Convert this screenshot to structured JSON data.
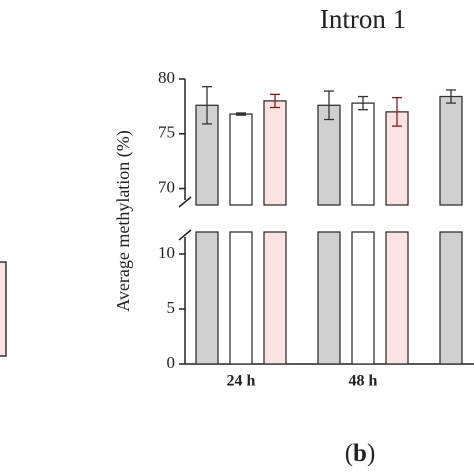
{
  "chart_data": {
    "type": "bar",
    "title": "Intron 1",
    "ylabel": "Average methylation (%)",
    "panel_label": {
      "open": "(",
      "letter": "b",
      "close": ")"
    },
    "categories": [
      "24 h",
      "48 h",
      null
    ],
    "series": [
      {
        "color": "#d0d0d0",
        "error_color": "#333333",
        "values": [
          77.6,
          77.6,
          78.4
        ],
        "errors": [
          1.7,
          1.3,
          0.6
        ]
      },
      {
        "color": "#ffffff",
        "error_color": "#333333",
        "values": [
          76.8,
          77.8,
          null
        ],
        "errors": [
          0.1,
          0.6,
          null
        ]
      },
      {
        "color": "#fde2e2",
        "error_color": "#8b1a1a",
        "values": [
          78.0,
          77.0,
          null
        ],
        "errors": [
          0.6,
          1.3,
          null
        ]
      }
    ],
    "segments": [
      {
        "ylim": [
          0,
          12
        ],
        "yticks": [
          0,
          5,
          10
        ]
      },
      {
        "ylim": [
          68.5,
          80
        ],
        "yticks": [
          70,
          75,
          80
        ]
      }
    ]
  }
}
